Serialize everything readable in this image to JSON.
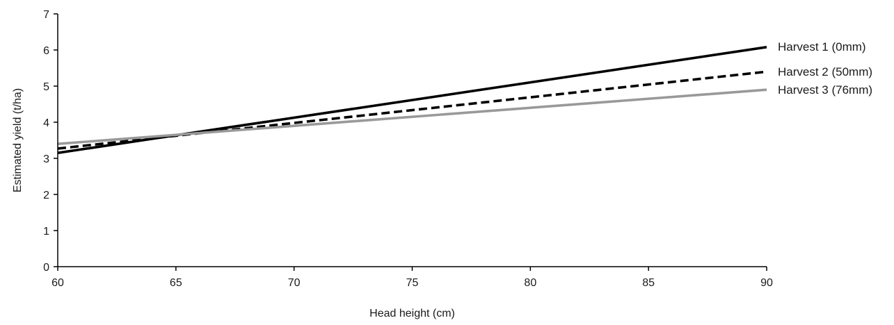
{
  "chart_data": {
    "type": "line",
    "title": "",
    "xlabel": "Head height (cm)",
    "ylabel": "Estimated yield (t/ha)",
    "xlim": [
      60,
      90
    ],
    "ylim": [
      0,
      7
    ],
    "x_ticks": [
      60,
      65,
      70,
      75,
      80,
      85,
      90
    ],
    "y_ticks": [
      0,
      1,
      2,
      3,
      4,
      5,
      6,
      7
    ],
    "grid": false,
    "legend": "direct labels at right end of lines",
    "series": [
      {
        "name": "Harvest 1 (0mm)",
        "x": [
          60,
          90
        ],
        "y": [
          3.15,
          6.08
        ],
        "color": "#000000",
        "style": "solid"
      },
      {
        "name": "Harvest 2 (50mm)",
        "x": [
          60,
          90
        ],
        "y": [
          3.27,
          5.4
        ],
        "color": "#000000",
        "style": "dashed"
      },
      {
        "name": "Harvest 3 (76mm)",
        "x": [
          60,
          90
        ],
        "y": [
          3.4,
          4.9
        ],
        "color": "#999999",
        "style": "solid"
      }
    ]
  }
}
